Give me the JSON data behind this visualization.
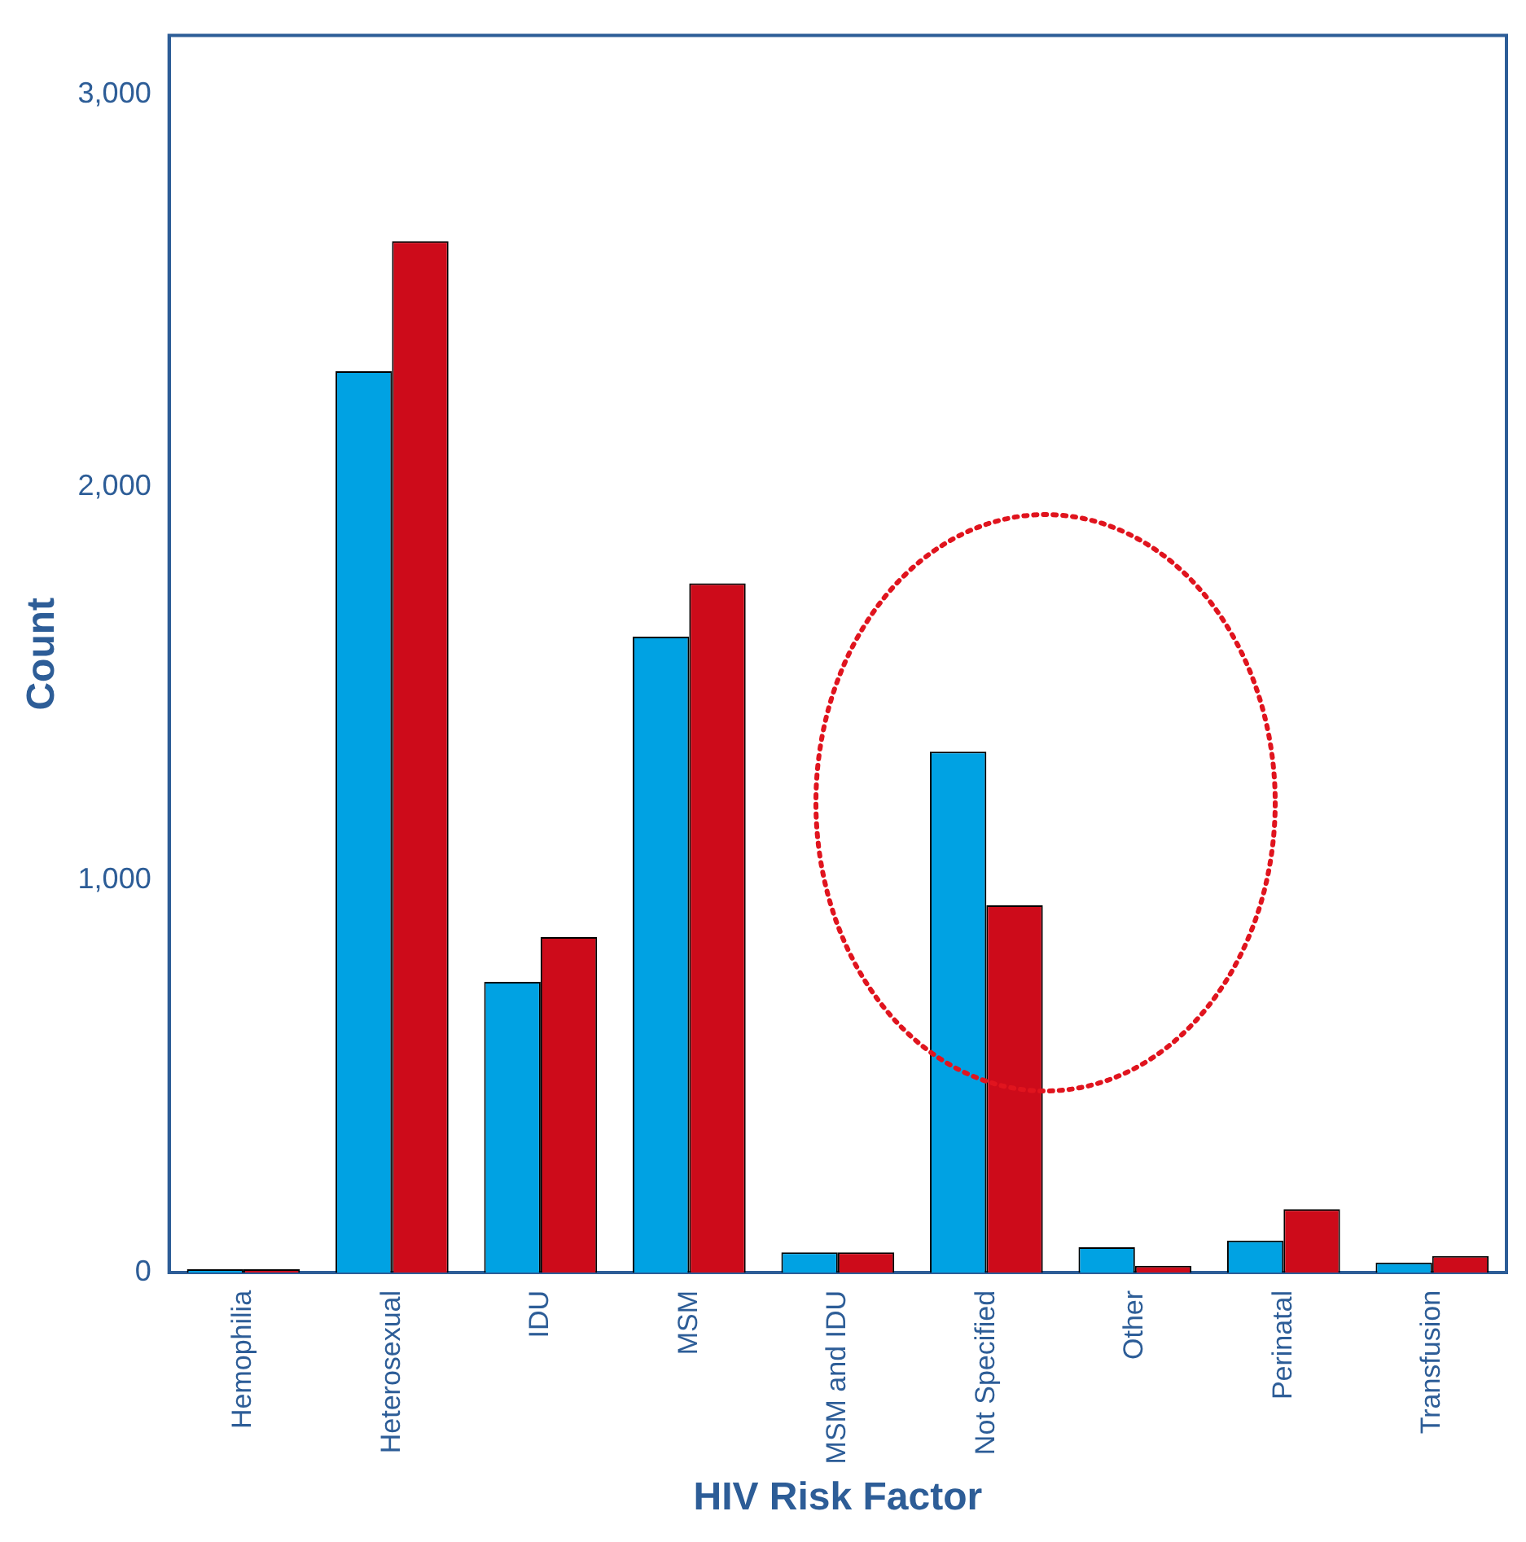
{
  "chart_data": {
    "type": "bar",
    "xlabel": "HIV Risk Factor",
    "ylabel": "Count",
    "categories": [
      "Hemophilia",
      "Heterosexual",
      "IDU",
      "MSM",
      "MSM and IDU",
      "Not Specified",
      "Other",
      "Perinatal",
      "Transfusion"
    ],
    "series": [
      {
        "color": "#00a2e3",
        "values": [
          8,
          2295,
          740,
          1619,
          51,
          1326,
          64,
          81,
          25
        ]
      },
      {
        "color": "#cd0b1a",
        "values": [
          8,
          2626,
          854,
          1755,
          51,
          935,
          17,
          161,
          42
        ]
      }
    ],
    "ylim": [
      0,
      3150
    ],
    "yticks": [
      0,
      {
        "value": 1000,
        "label": "1,000"
      },
      {
        "value": 2000,
        "label": "2,000"
      },
      {
        "value": 3000,
        "label": "3,000"
      }
    ],
    "grid": false,
    "legend": false
  }
}
